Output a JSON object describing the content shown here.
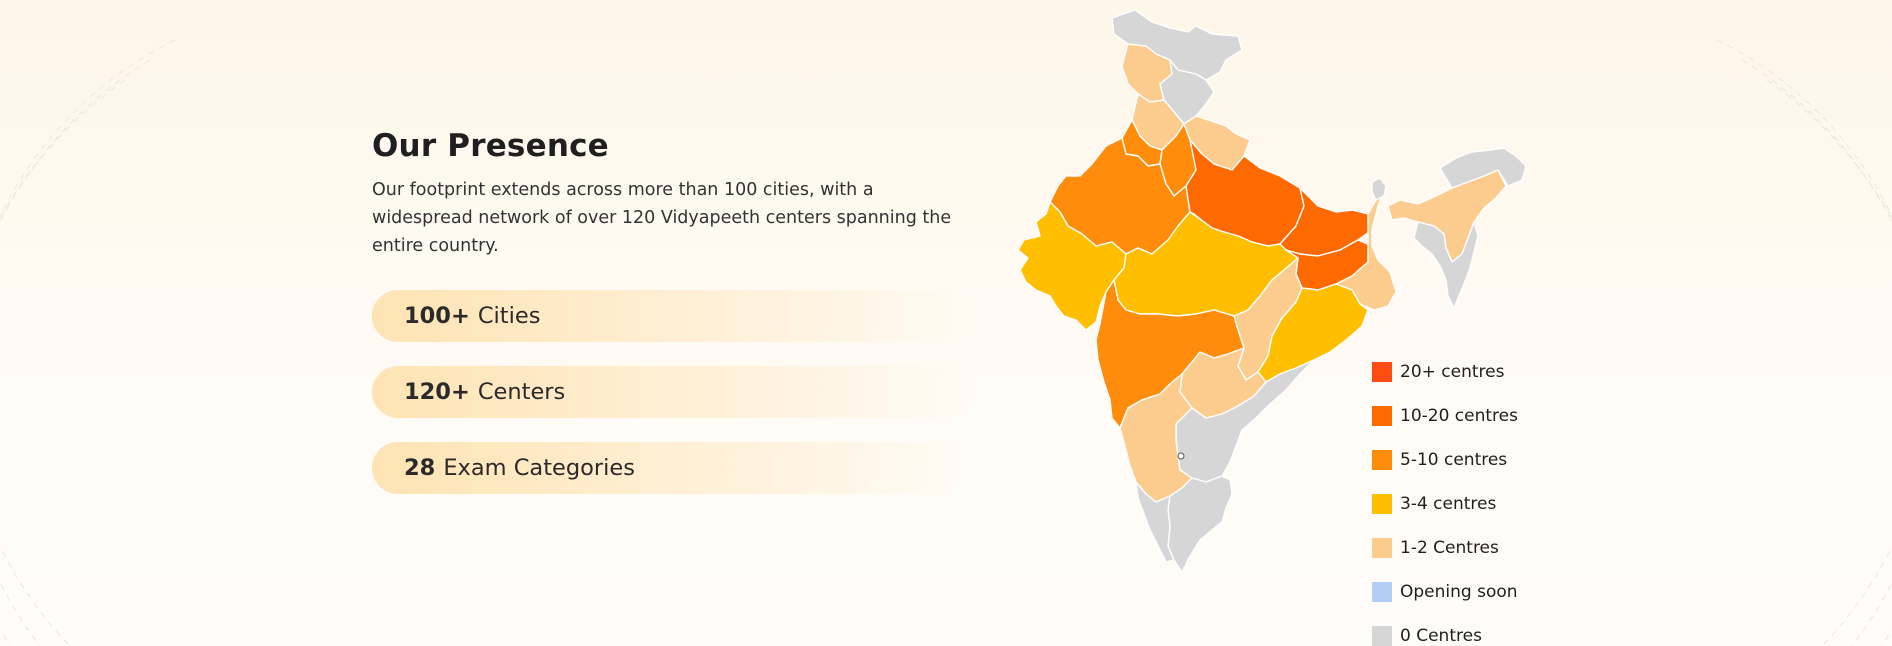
{
  "presence": {
    "title": "Our Presence",
    "description": "Our footprint extends across more than 100 cities, with a widespread network of over 120 Vidyapeeth centers spanning the entire country."
  },
  "stats": [
    {
      "value": "100+",
      "label": "Cities"
    },
    {
      "value": "120+",
      "label": "Centers"
    },
    {
      "value": "28",
      "label": "Exam Categories"
    }
  ],
  "legend": [
    {
      "label": "20+ centres",
      "color": "#ff4d12"
    },
    {
      "label": "10-20 centres",
      "color": "#ff6a00"
    },
    {
      "label": "5-10 centres",
      "color": "#ff8c0a"
    },
    {
      "label": "3-4 centres",
      "color": "#ffbf00"
    },
    {
      "label": "1-2 Centres",
      "color": "#fccc8e"
    },
    {
      "label": "Opening soon",
      "color": "#b3cdf5"
    },
    {
      "label": "0 Centres",
      "color": "#d6d6d6"
    }
  ],
  "map": {
    "regions": [
      {
        "name": "region-north-top",
        "category": "0 Centres"
      },
      {
        "name": "region-jammu-kashmir",
        "category": "1-2 Centres"
      },
      {
        "name": "region-ladakh-east",
        "category": "0 Centres"
      },
      {
        "name": "region-himachal-pradesh",
        "category": "1-2 Centres"
      },
      {
        "name": "region-punjab",
        "category": "5-10 centres"
      },
      {
        "name": "region-uttarakhand",
        "category": "1-2 Centres"
      },
      {
        "name": "region-haryana-delhi",
        "category": "5-10 centres"
      },
      {
        "name": "region-rajasthan",
        "category": "5-10 centres"
      },
      {
        "name": "region-uttar-pradesh",
        "category": "10-20 centres"
      },
      {
        "name": "region-bihar",
        "category": "10-20 centres"
      },
      {
        "name": "region-gujarat",
        "category": "3-4 centres"
      },
      {
        "name": "region-madhya-pradesh",
        "category": "3-4 centres"
      },
      {
        "name": "region-jharkhand",
        "category": "10-20 centres"
      },
      {
        "name": "region-west-bengal",
        "category": "1-2 Centres"
      },
      {
        "name": "region-chhattisgarh",
        "category": "1-2 Centres"
      },
      {
        "name": "region-odisha",
        "category": "3-4 centres"
      },
      {
        "name": "region-maharashtra",
        "category": "5-10 centres"
      },
      {
        "name": "region-telangana",
        "category": "1-2 Centres"
      },
      {
        "name": "region-andhra-pradesh",
        "category": "0 Centres"
      },
      {
        "name": "region-karnataka",
        "category": "1-2 Centres"
      },
      {
        "name": "region-tamil-nadu",
        "category": "0 Centres"
      },
      {
        "name": "region-kerala",
        "category": "0 Centres"
      },
      {
        "name": "region-sikkim",
        "category": "0 Centres"
      },
      {
        "name": "region-northeast",
        "category": "1-2 Centres"
      },
      {
        "name": "region-arunachal",
        "category": "0 Centres"
      },
      {
        "name": "region-northeast-south",
        "category": "0 Centres"
      }
    ]
  }
}
